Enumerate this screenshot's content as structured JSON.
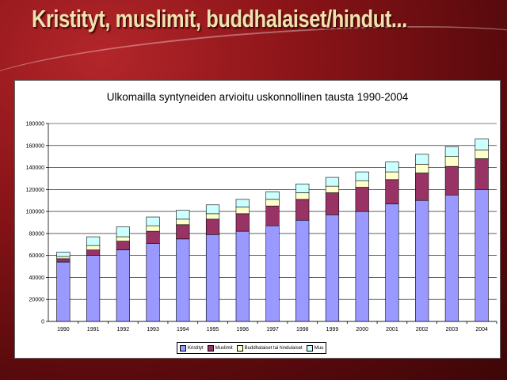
{
  "slide": {
    "title": "Kristityt, muslimit, buddhalaiset/hindut..."
  },
  "chart_data": {
    "type": "bar",
    "stacked": true,
    "title": "Ulkomailla syntyneiden arvioitu uskonnollinen tausta 1990-2004",
    "xlabel": "",
    "ylabel": "",
    "categories": [
      "1990",
      "1991",
      "1992",
      "1993",
      "1994",
      "1995",
      "1996",
      "1997",
      "1998",
      "1999",
      "2000",
      "2001",
      "2002",
      "2003",
      "2004"
    ],
    "ylim": [
      0,
      180000
    ],
    "yticks": [
      0,
      20000,
      40000,
      60000,
      80000,
      100000,
      120000,
      140000,
      160000,
      180000
    ],
    "grid": true,
    "legend_position": "bottom",
    "series": [
      {
        "name": "Kristityt",
        "color": "#9999ff",
        "values": [
          54000,
          60000,
          65000,
          71000,
          75000,
          79000,
          82000,
          87000,
          92000,
          97000,
          100000,
          107000,
          110000,
          115000,
          120000
        ]
      },
      {
        "name": "Muslimit",
        "color": "#993366",
        "values": [
          3000,
          5000,
          8000,
          11000,
          13000,
          14000,
          16000,
          18000,
          19000,
          20000,
          22000,
          22000,
          25000,
          26000,
          28000
        ]
      },
      {
        "name": "Buddhalaiset tai hindulaiset",
        "color": "#ffffcc",
        "values": [
          2000,
          4000,
          4000,
          5000,
          5000,
          5000,
          6000,
          6000,
          6000,
          6000,
          6000,
          7000,
          8000,
          9000,
          8000
        ]
      },
      {
        "name": "Muu",
        "color": "#ccffff",
        "values": [
          4000,
          8000,
          9000,
          8000,
          8000,
          8000,
          7000,
          7000,
          8000,
          8000,
          8000,
          9000,
          9000,
          9000,
          10000
        ]
      }
    ]
  }
}
